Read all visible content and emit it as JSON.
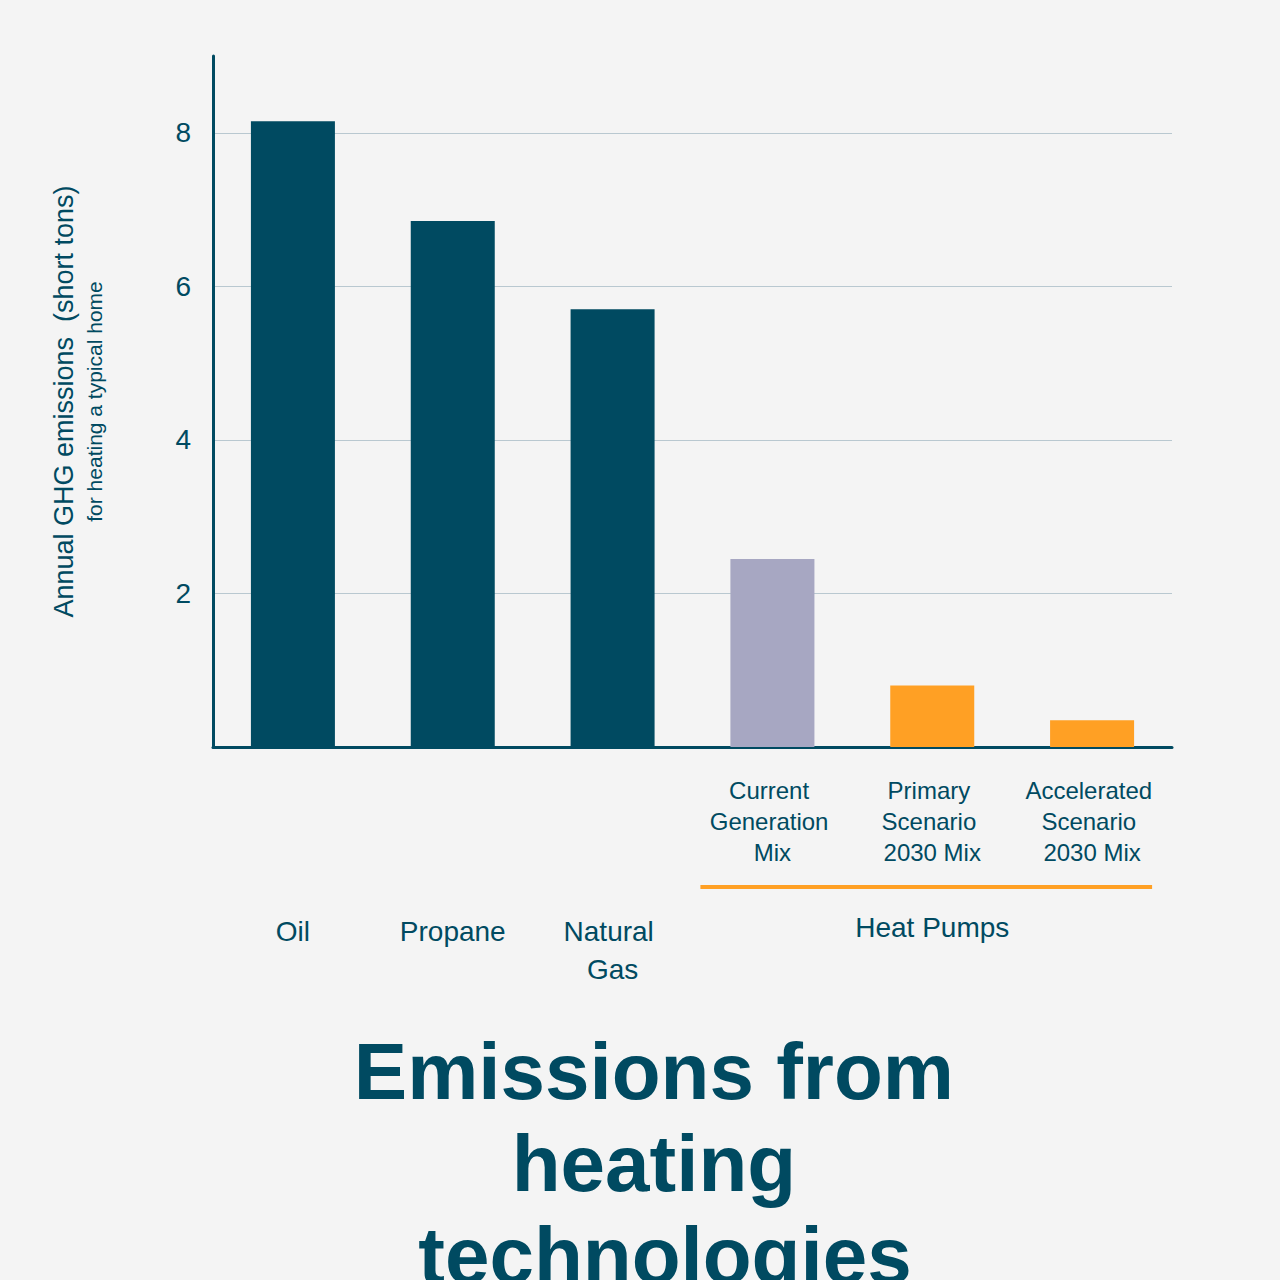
{
  "chart_data": {
    "type": "bar",
    "title": "Emissions from heating technologies",
    "y_label": "Annual GHG emissions  (short tons)",
    "y_sublabel": "for heating a typical home",
    "categories": [
      "Oil",
      "Propane",
      "Natural Gas",
      "Current Generation Mix",
      "Primary Scenario 2030 Mix",
      "Accelerated Scenario 2030 Mix"
    ],
    "values": [
      8.15,
      6.85,
      5.7,
      2.45,
      0.8,
      0.35
    ],
    "colors": [
      "#004a61",
      "#004a61",
      "#004a61",
      "#a7a7c2",
      "#ffa024",
      "#ffa024"
    ],
    "groups": [
      {
        "label": "Heat Pumps",
        "categories": [
          "Current Generation Mix",
          "Primary Scenario 2030 Mix",
          "Accelerated Scenario 2030 Mix"
        ]
      }
    ],
    "ylim": [
      0,
      9
    ],
    "yticks": [
      2,
      4,
      6,
      8
    ],
    "grid": true
  }
}
